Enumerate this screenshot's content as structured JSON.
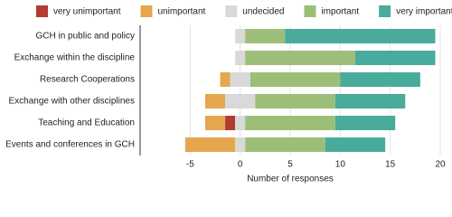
{
  "chart_data": {
    "type": "diverging-bar",
    "x_label": "Number of responses",
    "categories": [
      "GCH in public and policy",
      "Exchange within the discipline",
      "Research Cooperations",
      "Exchange with other disciplines",
      "Teaching and Education",
      "Events and conferences in GCH"
    ],
    "series": [
      {
        "name": "very unimportant",
        "color": "#b23b32",
        "side": "negative",
        "values": [
          0,
          0,
          0,
          0,
          1,
          0
        ]
      },
      {
        "name": "unimportant",
        "color": "#e5a64f",
        "side": "negative",
        "values": [
          0,
          0,
          1,
          2,
          2,
          5
        ]
      },
      {
        "name": "undecided",
        "color": "#d9d9d9",
        "side": "center",
        "values": [
          1,
          1,
          2,
          3,
          1,
          1
        ]
      },
      {
        "name": "important",
        "color": "#9dbe78",
        "side": "positive",
        "values": [
          4,
          11,
          9,
          8,
          9,
          8
        ]
      },
      {
        "name": "very important",
        "color": "#48ab9c",
        "side": "positive",
        "values": [
          15,
          8,
          8,
          7,
          6,
          6
        ]
      }
    ],
    "xlim": [
      -10,
      20
    ],
    "xticks": [
      -5,
      0,
      5,
      10,
      15,
      20
    ],
    "grid": true,
    "legend": "top"
  }
}
